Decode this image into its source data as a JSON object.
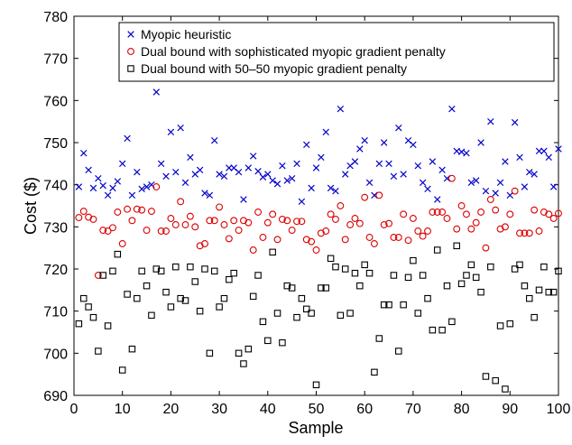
{
  "chart_data": {
    "type": "scatter",
    "title": "",
    "xlabel": "Sample",
    "ylabel": "Cost ($)",
    "xlim": [
      0,
      100
    ],
    "ylim": [
      690,
      780
    ],
    "xticks": [
      0,
      10,
      20,
      30,
      40,
      50,
      60,
      70,
      80,
      90,
      100
    ],
    "yticks": [
      690,
      700,
      710,
      720,
      730,
      740,
      750,
      760,
      770,
      780
    ],
    "grid": false,
    "legend_position": "top-right",
    "x": [
      1,
      2,
      3,
      4,
      5,
      6,
      7,
      8,
      9,
      10,
      11,
      12,
      13,
      14,
      15,
      16,
      17,
      18,
      19,
      20,
      21,
      22,
      23,
      24,
      25,
      26,
      27,
      28,
      29,
      30,
      31,
      32,
      33,
      34,
      35,
      36,
      37,
      38,
      39,
      40,
      41,
      42,
      43,
      44,
      45,
      46,
      47,
      48,
      49,
      50,
      51,
      52,
      53,
      54,
      55,
      56,
      57,
      58,
      59,
      60,
      61,
      62,
      63,
      64,
      65,
      66,
      67,
      68,
      69,
      70,
      71,
      72,
      73,
      74,
      75,
      76,
      77,
      78,
      79,
      80,
      81,
      82,
      83,
      84,
      85,
      86,
      87,
      88,
      89,
      90,
      91,
      92,
      93,
      94,
      95,
      96,
      97,
      98,
      99,
      100
    ],
    "series": [
      {
        "name": "Myopic heuristic",
        "marker": "x",
        "color": "#0000cc",
        "values": [
          739.5,
          747.5,
          743.5,
          739.2,
          741.5,
          739.8,
          737.5,
          739.2,
          740.8,
          745.0,
          751.0,
          737.5,
          743.0,
          739.0,
          739.5,
          740.0,
          762.0,
          745.0,
          742.0,
          752.5,
          743.0,
          753.5,
          740.5,
          746.5,
          742.5,
          743.5,
          738.0,
          737.5,
          750.5,
          742.5,
          742.0,
          744.0,
          744.0,
          743.0,
          736.5,
          744.0,
          746.8,
          743.2,
          741.8,
          742.5,
          741.0,
          740.2,
          744.5,
          741.0,
          741.5,
          745.0,
          736.0,
          749.5,
          739.2,
          744.0,
          746.5,
          752.5,
          739.2,
          738.5,
          758.0,
          742.5,
          744.5,
          745.5,
          748.5,
          750.5,
          740.5,
          737.5,
          745.0,
          750.0,
          745.0,
          742.0,
          753.5,
          742.5,
          750.5,
          749.5,
          744.5,
          740.5,
          739.0,
          745.5,
          736.5,
          743.5,
          741.5,
          758.0,
          748.0,
          747.8,
          747.5,
          740.5,
          741.0,
          750.0,
          738.5,
          755.0,
          738.0,
          740.5,
          745.5,
          737.5,
          754.8,
          746.5,
          739.5,
          743.0,
          742.5,
          748.0,
          748.0,
          746.5,
          739.5,
          748.5
        ]
      },
      {
        "name": "Dual bound with sophisticated myopic gradient penalty",
        "marker": "o",
        "color": "#dd0000",
        "values": [
          732.2,
          733.7,
          732.3,
          731.8,
          718.5,
          729.2,
          729.0,
          729.8,
          733.5,
          726.0,
          734.2,
          731.5,
          734.2,
          734.0,
          729.2,
          733.7,
          739.5,
          729.0,
          729.0,
          732.0,
          730.5,
          736.0,
          730.5,
          732.5,
          730.0,
          725.5,
          726.0,
          731.5,
          731.5,
          734.7,
          730.5,
          727.2,
          731.5,
          729.2,
          731.5,
          731.0,
          724.5,
          733.5,
          727.5,
          731.0,
          733.0,
          727.0,
          731.8,
          731.5,
          729.2,
          731.3,
          731.3,
          727.0,
          726.5,
          724.5,
          728.5,
          729.0,
          733.0,
          731.8,
          735.0,
          727.0,
          730.5,
          732.0,
          730.8,
          737.0,
          727.5,
          726.0,
          737.5,
          730.5,
          730.8,
          727.5,
          727.5,
          733.0,
          726.8,
          732.0,
          729.0,
          727.8,
          729.0,
          733.5,
          733.5,
          733.5,
          732.0,
          741.5,
          729.5,
          735.0,
          733.0,
          729.5,
          731.0,
          733.5,
          725.0,
          736.5,
          734.0,
          729.5,
          730.0,
          733.0,
          738.5,
          728.5,
          728.5,
          728.5,
          734.0,
          729.0,
          733.5,
          733.0,
          732.0,
          733.2
        ]
      },
      {
        "name": "Dual bound with 50–50 myopic gradient penalty",
        "marker": "square",
        "color": "#000000",
        "values": [
          707.0,
          713.0,
          711.0,
          708.5,
          700.5,
          718.5,
          706.5,
          719.5,
          723.5,
          696.0,
          714.0,
          701.0,
          713.0,
          719.5,
          716.0,
          709.0,
          720.0,
          719.5,
          714.5,
          711.0,
          720.5,
          713.0,
          712.5,
          720.5,
          717.0,
          710.0,
          720.0,
          700.0,
          719.5,
          711.0,
          713.0,
          717.5,
          719.0,
          700.0,
          697.5,
          701.0,
          713.5,
          718.5,
          707.5,
          703.0,
          724.0,
          709.5,
          702.5,
          716.0,
          715.5,
          708.5,
          713.0,
          710.5,
          709.5,
          692.5,
          715.5,
          715.5,
          722.5,
          720.5,
          709.0,
          720.0,
          709.5,
          719.0,
          716.0,
          721.0,
          719.0,
          695.5,
          703.5,
          711.5,
          711.5,
          718.5,
          700.5,
          711.5,
          718.0,
          722.0,
          709.5,
          718.5,
          713.0,
          705.5,
          724.5,
          705.5,
          716.0,
          707.5,
          725.5,
          716.5,
          718.5,
          721.0,
          718.0,
          714.5,
          694.5,
          720.5,
          693.5,
          706.5,
          691.5,
          707.0,
          720.0,
          721.0,
          716.0,
          713.0,
          708.5,
          715.0,
          720.5,
          714.5,
          714.5,
          719.5
        ]
      }
    ]
  }
}
